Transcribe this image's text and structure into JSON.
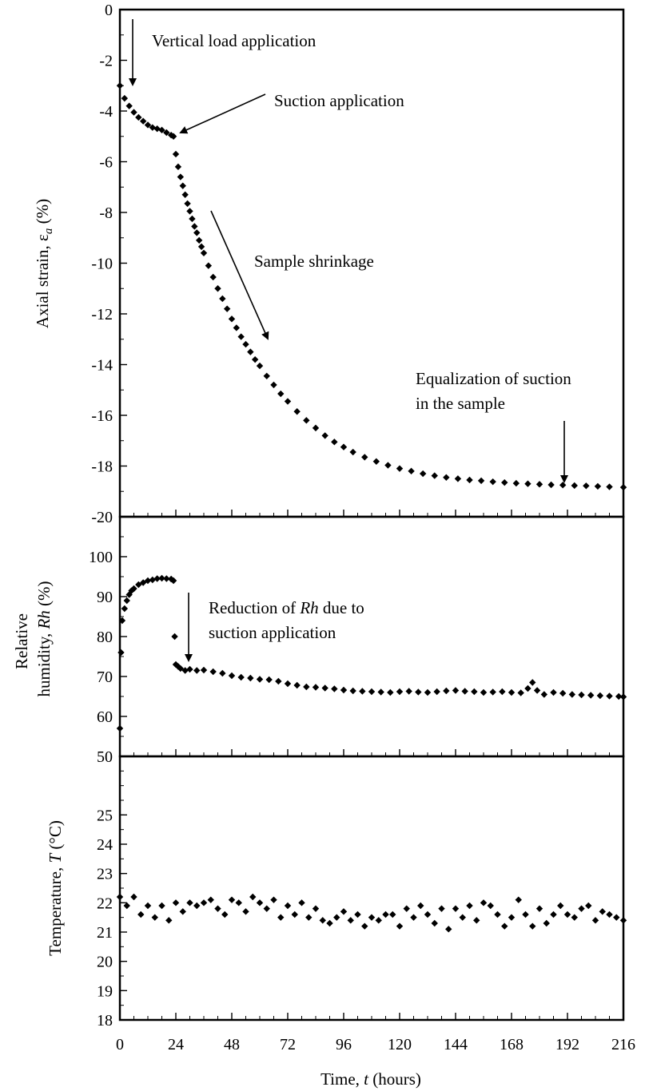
{
  "chart_data": [
    {
      "type": "scatter",
      "id": "strain",
      "title": "",
      "xlabel": "Time, t (hours)",
      "ylabel": "Axial strain, ε_a (%)",
      "ylabel_parts": [
        "Axial strain, ε",
        "a",
        " (%)"
      ],
      "xlim": [
        0,
        216
      ],
      "ylim": [
        -20,
        0
      ],
      "yticks": [
        "0",
        "-2",
        "-4",
        "-6",
        "-8",
        "-10",
        "-12",
        "-14",
        "-16",
        "-18",
        "-20"
      ],
      "ytick_values": [
        0,
        -2,
        -4,
        -6,
        -8,
        -10,
        -12,
        -14,
        -16,
        -18,
        -20
      ],
      "series": [
        {
          "x": [
            0,
            2,
            4,
            6,
            8,
            10,
            12,
            14,
            16,
            18,
            20,
            22,
            23,
            24,
            25,
            26,
            27,
            28,
            29,
            30,
            31,
            32,
            33,
            34,
            35,
            36,
            38,
            40,
            42,
            44,
            46,
            48,
            50,
            52,
            54,
            56,
            58,
            60,
            63,
            66,
            69,
            72,
            76,
            80,
            84,
            88,
            92,
            96,
            100,
            105,
            110,
            115,
            120,
            125,
            130,
            135,
            140,
            145,
            150,
            155,
            160,
            165,
            170,
            175,
            180,
            185,
            190,
            195,
            200,
            205,
            210,
            216
          ],
          "y": [
            -3.0,
            -3.5,
            -3.8,
            -4.05,
            -4.25,
            -4.4,
            -4.55,
            -4.65,
            -4.7,
            -4.75,
            -4.85,
            -4.95,
            -5.0,
            -5.7,
            -6.2,
            -6.6,
            -6.95,
            -7.3,
            -7.65,
            -7.95,
            -8.25,
            -8.55,
            -8.8,
            -9.1,
            -9.35,
            -9.6,
            -10.1,
            -10.55,
            -11.0,
            -11.4,
            -11.8,
            -12.2,
            -12.55,
            -12.9,
            -13.2,
            -13.5,
            -13.8,
            -14.05,
            -14.45,
            -14.8,
            -15.15,
            -15.45,
            -15.85,
            -16.2,
            -16.5,
            -16.8,
            -17.05,
            -17.25,
            -17.45,
            -17.65,
            -17.82,
            -17.97,
            -18.1,
            -18.2,
            -18.3,
            -18.38,
            -18.45,
            -18.5,
            -18.55,
            -18.58,
            -18.62,
            -18.65,
            -18.68,
            -18.7,
            -18.72,
            -18.74,
            -18.75,
            -18.77,
            -18.78,
            -18.8,
            -18.82,
            -18.84
          ]
        }
      ],
      "annotations": [
        "Vertical load application",
        "Suction application",
        "Sample shrinkage",
        "Equalization of suction",
        "in the sample"
      ]
    },
    {
      "type": "scatter",
      "id": "humidity",
      "title": "",
      "xlabel": "Time, t (hours)",
      "ylabel": "Relative humidity, Rh (%)",
      "ylabel_line1": "Relative",
      "ylabel_line2_parts": [
        "humidity, ",
        "Rh",
        " (%)"
      ],
      "xlim": [
        0,
        216
      ],
      "ylim": [
        50,
        110
      ],
      "yticks": [
        "100",
        "90",
        "80",
        "70",
        "60",
        "50"
      ],
      "ytick_values": [
        100,
        90,
        80,
        70,
        60,
        50
      ],
      "series": [
        {
          "x": [
            0,
            0.5,
            1,
            2,
            3,
            4,
            5,
            6,
            8,
            10,
            12,
            14,
            16,
            18,
            20,
            22,
            23,
            23.5,
            24,
            25,
            26,
            28,
            30,
            33,
            36,
            40,
            44,
            48,
            52,
            56,
            60,
            64,
            68,
            72,
            76,
            80,
            84,
            88,
            92,
            96,
            100,
            104,
            108,
            112,
            116,
            120,
            124,
            128,
            132,
            136,
            140,
            144,
            148,
            152,
            156,
            160,
            164,
            168,
            172,
            175,
            177,
            179,
            182,
            186,
            190,
            194,
            198,
            202,
            206,
            210,
            214,
            216
          ],
          "y": [
            57,
            76,
            84,
            87,
            89,
            90.5,
            91.5,
            92,
            93,
            93.5,
            94,
            94.2,
            94.5,
            94.6,
            94.5,
            94.4,
            94,
            80,
            73,
            72.5,
            72,
            71.5,
            71.8,
            71.5,
            71.6,
            71.2,
            70.8,
            70.2,
            69.8,
            69.6,
            69.3,
            69.2,
            68.8,
            68.2,
            67.8,
            67.4,
            67.3,
            67.1,
            66.9,
            66.6,
            66.4,
            66.3,
            66.2,
            66.1,
            66.0,
            66.2,
            66.3,
            66.1,
            66.0,
            66.2,
            66.4,
            66.5,
            66.3,
            66.2,
            66.0,
            66.1,
            66.2,
            66.0,
            65.9,
            67,
            68.5,
            66.5,
            65.5,
            66.0,
            65.8,
            65.5,
            65.4,
            65.3,
            65.2,
            65.1,
            65.0,
            64.9
          ]
        }
      ],
      "annotations": [
        "Reduction of Rh due to",
        "suction application"
      ],
      "annotation_line1_parts": [
        "Reduction of ",
        "Rh",
        " due to"
      ]
    },
    {
      "type": "scatter",
      "id": "temperature",
      "title": "",
      "xlabel": "Time, t (hours)",
      "ylabel": "Temperature, T (°C)",
      "ylabel_parts": [
        "Temperature, ",
        "T",
        " (°C)"
      ],
      "xlim": [
        0,
        216
      ],
      "ylim": [
        18,
        27
      ],
      "xticks": [
        "0",
        "24",
        "48",
        "72",
        "96",
        "120",
        "144",
        "168",
        "192",
        "216"
      ],
      "xtick_values": [
        0,
        24,
        48,
        72,
        96,
        120,
        144,
        168,
        192,
        216
      ],
      "yticks": [
        "25",
        "24",
        "23",
        "22",
        "21",
        "20",
        "19",
        "18"
      ],
      "ytick_values": [
        25,
        24,
        23,
        22,
        21,
        20,
        19,
        18
      ],
      "series": [
        {
          "x": [
            0,
            3,
            6,
            9,
            12,
            15,
            18,
            21,
            24,
            27,
            30,
            33,
            36,
            39,
            42,
            45,
            48,
            51,
            54,
            57,
            60,
            63,
            66,
            69,
            72,
            75,
            78,
            81,
            84,
            87,
            90,
            93,
            96,
            99,
            102,
            105,
            108,
            111,
            114,
            117,
            120,
            123,
            126,
            129,
            132,
            135,
            138,
            141,
            144,
            147,
            150,
            153,
            156,
            159,
            162,
            165,
            168,
            171,
            174,
            177,
            180,
            183,
            186,
            189,
            192,
            195,
            198,
            201,
            204,
            207,
            210,
            213,
            216
          ],
          "y": [
            22.2,
            21.9,
            22.2,
            21.6,
            21.9,
            21.5,
            21.9,
            21.4,
            22.0,
            21.7,
            22.0,
            21.9,
            22.0,
            22.1,
            21.8,
            21.6,
            22.1,
            22.0,
            21.7,
            22.2,
            22.0,
            21.8,
            22.1,
            21.5,
            21.9,
            21.6,
            22.0,
            21.5,
            21.8,
            21.4,
            21.3,
            21.5,
            21.7,
            21.4,
            21.6,
            21.2,
            21.5,
            21.4,
            21.6,
            21.6,
            21.2,
            21.8,
            21.5,
            21.9,
            21.6,
            21.3,
            21.8,
            21.1,
            21.8,
            21.5,
            21.9,
            21.4,
            22.0,
            21.9,
            21.6,
            21.2,
            21.5,
            22.1,
            21.6,
            21.2,
            21.8,
            21.3,
            21.6,
            21.9,
            21.6,
            21.5,
            21.8,
            21.9,
            21.4,
            21.7,
            21.6,
            21.5,
            21.4
          ]
        }
      ]
    }
  ],
  "xlabel_parts": [
    "Time, ",
    "t",
    " (hours)"
  ]
}
